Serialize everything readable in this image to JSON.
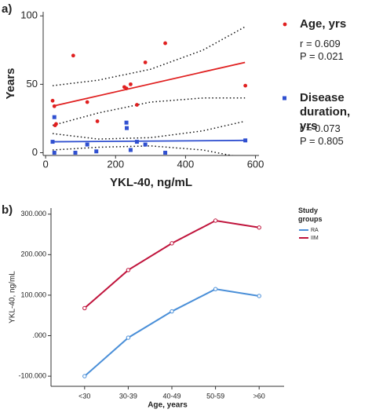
{
  "chart_data": [
    {
      "type": "scatter",
      "panel_label": "a)",
      "xlabel": "YKL-40, ng/mL",
      "ylabel": "Years",
      "xlim": [
        -7,
        610
      ],
      "ylim": [
        -2,
        103
      ],
      "xticks": [
        0,
        200,
        400,
        600
      ],
      "yticks": [
        0,
        50,
        100
      ],
      "series": [
        {
          "name": "Age, yrs",
          "color": "#e02020",
          "marker": "circle",
          "x": [
            20,
            25,
            30,
            27,
            79,
            119,
            148,
            225,
            231,
            243,
            261,
            285,
            342,
            571
          ],
          "values": [
            38,
            34,
            21,
            20,
            71,
            37,
            23,
            48,
            47,
            50,
            35,
            66,
            80,
            49
          ]
        },
        {
          "name": "Disease duration, yrs",
          "color": "#3050d0",
          "marker": "square",
          "x": [
            25,
            20,
            25,
            119,
            231,
            232,
            285,
            261,
            243,
            342,
            571,
            85,
            145
          ],
          "values": [
            26,
            8,
            0,
            6,
            22,
            18,
            6,
            8,
            2,
            0,
            9,
            0,
            1
          ]
        }
      ],
      "stats": [
        {
          "r": "r = 0.609",
          "p": "P = 0.021"
        },
        {
          "r": "r = 0.073",
          "p": "P = 0.805"
        }
      ],
      "fit_lines": [
        {
          "color": "#e02020",
          "style": "solid",
          "x": [
            20,
            570
          ],
          "values": [
            34,
            66
          ]
        },
        {
          "color": "#3050d0",
          "style": "solid",
          "x": [
            20,
            570
          ],
          "values": [
            8,
            9
          ]
        },
        {
          "color": "#111111",
          "style": "dotted",
          "x": [
            20,
            150,
            300,
            450,
            570
          ],
          "values": [
            49,
            53,
            61,
            75,
            92
          ]
        },
        {
          "color": "#111111",
          "style": "dotted",
          "x": [
            20,
            150,
            300,
            450,
            570
          ],
          "values": [
            20,
            29,
            37,
            40,
            40
          ]
        },
        {
          "color": "#111111",
          "style": "dotted",
          "x": [
            20,
            150,
            300,
            450,
            570
          ],
          "values": [
            14,
            10,
            11,
            16,
            23
          ]
        },
        {
          "color": "#111111",
          "style": "dotted",
          "x": [
            20,
            150,
            300,
            450,
            570
          ],
          "values": [
            2,
            4,
            5,
            2,
            -4
          ]
        }
      ]
    },
    {
      "type": "line",
      "panel_label": "b)",
      "xlabel": "Age, years",
      "ylabel": "YKL-40, ng/mL",
      "legend_title": "Study groups",
      "categories": [
        "<30",
        "30-39",
        "40-49",
        "50-59",
        ">60"
      ],
      "ylim": [
        -125,
        315
      ],
      "yticks": [
        {
          "value": -100,
          "label": "-100.000"
        },
        {
          "value": 0,
          "label": ".000"
        },
        {
          "value": 100,
          "label": "100.000"
        },
        {
          "value": 200,
          "label": "200.000"
        },
        {
          "value": 300,
          "label": "300.000"
        }
      ],
      "series": [
        {
          "name": "RA",
          "color": "#4a8fd8",
          "values": [
            -100,
            -5,
            60,
            115,
            98
          ]
        },
        {
          "name": "IIM",
          "color": "#c0143c",
          "values": [
            68,
            162,
            228,
            284,
            267
          ]
        }
      ]
    }
  ]
}
